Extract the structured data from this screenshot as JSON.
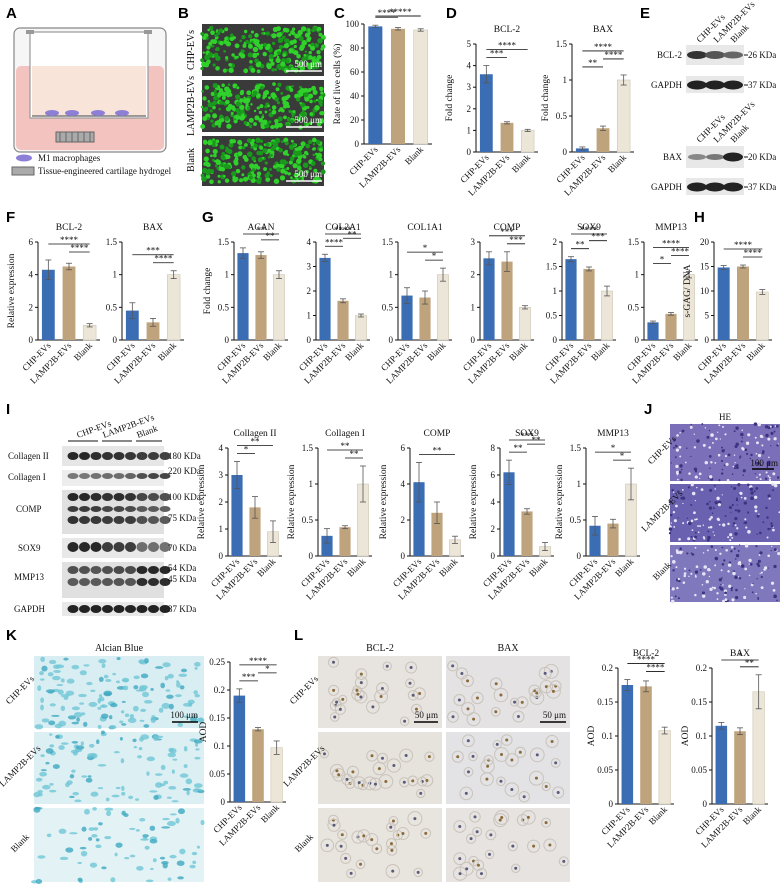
{
  "panels": {
    "A": {
      "label": "A",
      "legend": [
        "M1 macrophages",
        "Tissue-engineered cartilage hydrogel"
      ]
    },
    "B": {
      "label": "B",
      "rows": [
        "CHP-EVs",
        "LAMP2B-EVs",
        "Blank"
      ],
      "scale": "500 μm"
    },
    "C": {
      "label": "C"
    },
    "D": {
      "label": "D"
    },
    "E": {
      "label": "E",
      "blot1": {
        "cols": [
          "CHP-EVs",
          "LAMP2B-EVs",
          "Blank"
        ],
        "rows": [
          "BCL-2",
          "GAPDH"
        ],
        "kda": [
          "26 KDa",
          "37 KDa"
        ]
      },
      "blot2": {
        "cols": [
          "CHP-EVs",
          "LAMP2B-EVs",
          "Blank"
        ],
        "rows": [
          "BAX",
          "GAPDH"
        ],
        "kda": [
          "20 KDa",
          "37 KDa"
        ]
      }
    },
    "F": {
      "label": "F"
    },
    "G": {
      "label": "G"
    },
    "H": {
      "label": "H"
    },
    "I": {
      "label": "I",
      "groups": [
        "CHP-EVs",
        "LAMP2B-EVs",
        "Blank"
      ],
      "rows": [
        "Collagen II",
        "Collagen I",
        "COMP",
        "SOX9",
        "MMP13",
        "GAPDH"
      ],
      "kda": [
        "180 KDa",
        "220 KDa",
        "100 KDa",
        "75 KDa",
        "70 KDa",
        "54 KDa",
        "45 KDa",
        "37 KDa"
      ]
    },
    "J": {
      "label": "J",
      "title": "HE",
      "rows": [
        "CHP-EVs",
        "LAMP2B-EVs",
        "Blank"
      ],
      "scale": "100 μm"
    },
    "K": {
      "label": "K",
      "title": "Alcian Blue",
      "rows": [
        "CHP-EVs",
        "LAMP2B-EVs",
        "Blank"
      ],
      "scale": "100 μm"
    },
    "L": {
      "label": "L",
      "cols": [
        "BCL-2",
        "BAX"
      ],
      "rows": [
        "CHP-EVs",
        "LAMP2B-EVs",
        "Blank"
      ],
      "scale": "50 μm"
    }
  },
  "colors": {
    "chp": "#3b6db4",
    "lamp": "#bfa37c",
    "blank": "#ece6d8"
  },
  "chart_data": [
    {
      "id": "C",
      "type": "bar",
      "title": "",
      "ylabel": "Rate of live cells (%)",
      "categories": [
        "CHP-EVs",
        "LAMP2B-EVs",
        "Blank"
      ],
      "values": [
        98,
        96,
        95
      ],
      "errors": [
        1,
        1,
        1
      ],
      "ylim": [
        0,
        100
      ],
      "yticks": [
        "0",
        "20",
        "40",
        "60",
        "80",
        "100"
      ],
      "sig": [
        {
          "a": 0,
          "b": 1,
          "text": "****"
        },
        {
          "a": 0,
          "b": 2,
          "text": "****"
        },
        {
          "a": 1,
          "b": 2,
          "text": "*"
        }
      ]
    },
    {
      "id": "D1",
      "type": "bar",
      "title": "BCL-2",
      "ylabel": "Fold change",
      "categories": [
        "CHP-EVs",
        "LAMP2B-EVs",
        "Blank"
      ],
      "values": [
        3.6,
        1.35,
        1.0
      ],
      "errors": [
        0.4,
        0.05,
        0.05
      ],
      "ylim": [
        0,
        5
      ],
      "yticks": [
        "0",
        "1",
        "2",
        "3",
        "4",
        "5"
      ],
      "sig": [
        {
          "a": 0,
          "b": 1,
          "text": "***"
        },
        {
          "a": 0,
          "b": 2,
          "text": "****"
        }
      ]
    },
    {
      "id": "D2",
      "type": "bar",
      "title": "BAX",
      "ylabel": "Fold change",
      "categories": [
        "CHP-EVs",
        "LAMP2B-EVs",
        "Blank"
      ],
      "values": [
        0.05,
        0.33,
        1.0
      ],
      "errors": [
        0.02,
        0.03,
        0.07
      ],
      "ylim": [
        0,
        1.5
      ],
      "yticks": [
        "0",
        "0.5",
        "1",
        "1.5"
      ],
      "sig": [
        {
          "a": 0,
          "b": 1,
          "text": "**"
        },
        {
          "a": 0,
          "b": 2,
          "text": "****"
        },
        {
          "a": 1,
          "b": 2,
          "text": "****"
        }
      ]
    },
    {
      "id": "F1",
      "type": "bar",
      "title": "BCL-2",
      "ylabel": "Relative expression",
      "categories": [
        "CHP-EVs",
        "LAMP2B-EVs",
        "Blank"
      ],
      "values": [
        4.3,
        4.5,
        0.9
      ],
      "errors": [
        0.6,
        0.2,
        0.1
      ],
      "ylim": [
        0,
        6
      ],
      "yticks": [
        "0",
        "2",
        "4",
        "6"
      ],
      "sig": [
        {
          "a": 0,
          "b": 2,
          "text": "****"
        },
        {
          "a": 1,
          "b": 2,
          "text": "****"
        }
      ]
    },
    {
      "id": "F2",
      "type": "bar",
      "title": "BAX",
      "ylabel": "",
      "categories": [
        "CHP-EVs",
        "LAMP2B-EVs",
        "Blank"
      ],
      "values": [
        0.45,
        0.27,
        1.0
      ],
      "errors": [
        0.12,
        0.06,
        0.06
      ],
      "ylim": [
        0,
        1.5
      ],
      "yticks": [
        "0",
        "0.5",
        "1",
        "1.5"
      ],
      "sig": [
        {
          "a": 0,
          "b": 2,
          "text": "***"
        },
        {
          "a": 1,
          "b": 2,
          "text": "****"
        }
      ]
    },
    {
      "id": "G1",
      "type": "bar",
      "title": "ACAN",
      "ylabel": "Fold change",
      "categories": [
        "CHP-EVs",
        "LAMP2B-EVs",
        "Blank"
      ],
      "values": [
        1.33,
        1.3,
        1.0
      ],
      "errors": [
        0.08,
        0.05,
        0.06
      ],
      "ylim": [
        0,
        1.5
      ],
      "yticks": [
        "0",
        "0.5",
        "1",
        "1.5"
      ],
      "sig": [
        {
          "a": 0,
          "b": 2,
          "text": "**"
        },
        {
          "a": 1,
          "b": 2,
          "text": "**"
        }
      ]
    },
    {
      "id": "G2",
      "type": "bar",
      "title": "COL2A1",
      "ylabel": "",
      "categories": [
        "CHP-EVs",
        "LAMP2B-EVs",
        "Blank"
      ],
      "values": [
        3.35,
        1.6,
        1.0
      ],
      "errors": [
        0.15,
        0.08,
        0.06
      ],
      "ylim": [
        0,
        4
      ],
      "yticks": [
        "0",
        "1",
        "2",
        "3",
        "4"
      ],
      "sig": [
        {
          "a": 0,
          "b": 1,
          "text": "****"
        },
        {
          "a": 0,
          "b": 2,
          "text": "****"
        },
        {
          "a": 1,
          "b": 2,
          "text": "**"
        }
      ]
    },
    {
      "id": "G3",
      "type": "bar",
      "title": "COL1A1",
      "ylabel": "",
      "categories": [
        "CHP-EVs",
        "LAMP2B-EVs",
        "Blank"
      ],
      "values": [
        0.68,
        0.65,
        1.0
      ],
      "errors": [
        0.12,
        0.1,
        0.1
      ],
      "ylim": [
        0,
        1.5
      ],
      "yticks": [
        "0",
        "0.5",
        "1",
        "1.5"
      ],
      "sig": [
        {
          "a": 0,
          "b": 2,
          "text": "*"
        },
        {
          "a": 1,
          "b": 2,
          "text": "*"
        }
      ]
    },
    {
      "id": "G4",
      "type": "bar",
      "title": "COMP",
      "ylabel": "",
      "categories": [
        "CHP-EVs",
        "LAMP2B-EVs",
        "Blank"
      ],
      "values": [
        2.5,
        2.4,
        1.0
      ],
      "errors": [
        0.2,
        0.3,
        0.05
      ],
      "ylim": [
        0,
        3
      ],
      "yticks": [
        "0",
        "1",
        "2",
        "3"
      ],
      "sig": [
        {
          "a": 0,
          "b": 2,
          "text": "***"
        },
        {
          "a": 1,
          "b": 2,
          "text": "***"
        }
      ]
    },
    {
      "id": "G5",
      "type": "bar",
      "title": "SOX9",
      "ylabel": "",
      "categories": [
        "CHP-EVs",
        "LAMP2B-EVs",
        "Blank"
      ],
      "values": [
        1.65,
        1.45,
        1.0
      ],
      "errors": [
        0.05,
        0.04,
        0.1
      ],
      "ylim": [
        0,
        2
      ],
      "yticks": [
        "0",
        "0.5",
        "1",
        "1.5",
        "2"
      ],
      "sig": [
        {
          "a": 0,
          "b": 1,
          "text": "**"
        },
        {
          "a": 0,
          "b": 2,
          "text": "****"
        },
        {
          "a": 1,
          "b": 2,
          "text": "***"
        }
      ]
    },
    {
      "id": "G6",
      "type": "bar",
      "title": "MMP13",
      "ylabel": "",
      "categories": [
        "CHP-EVs",
        "LAMP2B-EVs",
        "Blank"
      ],
      "values": [
        0.27,
        0.4,
        1.0
      ],
      "errors": [
        0.02,
        0.02,
        0.05
      ],
      "ylim": [
        0,
        1.5
      ],
      "yticks": [
        "0",
        "0.5",
        "1",
        "1.5"
      ],
      "sig": [
        {
          "a": 0,
          "b": 1,
          "text": "*"
        },
        {
          "a": 0,
          "b": 2,
          "text": "****"
        },
        {
          "a": 1,
          "b": 2,
          "text": "****"
        }
      ]
    },
    {
      "id": "H",
      "type": "bar",
      "title": "",
      "ylabel": "s-GAG/ DNA",
      "categories": [
        "CHP-EVs",
        "LAMP2B-EVs",
        "Blank"
      ],
      "values": [
        14.8,
        15.0,
        9.8
      ],
      "errors": [
        0.4,
        0.3,
        0.5
      ],
      "ylim": [
        0,
        20
      ],
      "yticks": [
        "0",
        "5",
        "10",
        "15",
        "20"
      ],
      "sig": [
        {
          "a": 0,
          "b": 2,
          "text": "****"
        },
        {
          "a": 1,
          "b": 2,
          "text": "****"
        }
      ]
    },
    {
      "id": "I1",
      "type": "bar",
      "title": "Collagen II",
      "ylabel": "Relative expression",
      "categories": [
        "CHP-EVs",
        "LAMP2B-EVs",
        "Blank"
      ],
      "values": [
        3.0,
        1.8,
        0.9
      ],
      "errors": [
        0.5,
        0.4,
        0.4
      ],
      "ylim": [
        0,
        4
      ],
      "yticks": [
        "0",
        "1",
        "2",
        "3",
        "4"
      ],
      "sig": [
        {
          "a": 0,
          "b": 1,
          "text": "*"
        },
        {
          "a": 0,
          "b": 2,
          "text": "**"
        }
      ]
    },
    {
      "id": "I2",
      "type": "bar",
      "title": "Collagen I",
      "ylabel": "Relative expression",
      "categories": [
        "CHP-EVs",
        "LAMP2B-EVs",
        "Blank"
      ],
      "values": [
        0.28,
        0.4,
        1.0
      ],
      "errors": [
        0.1,
        0.02,
        0.25
      ],
      "ylim": [
        0,
        1.5
      ],
      "yticks": [
        "0",
        "0.5",
        "1",
        "1.5"
      ],
      "sig": [
        {
          "a": 0,
          "b": 2,
          "text": "**"
        },
        {
          "a": 1,
          "b": 2,
          "text": "**"
        }
      ]
    },
    {
      "id": "I3",
      "type": "bar",
      "title": "COMP",
      "ylabel": "Relative expression",
      "categories": [
        "CHP-EVs",
        "LAMP2B-EVs",
        "Blank"
      ],
      "values": [
        4.1,
        2.4,
        0.9
      ],
      "errors": [
        1.1,
        0.6,
        0.2
      ],
      "ylim": [
        0,
        6
      ],
      "yticks": [
        "0",
        "2",
        "4",
        "6"
      ],
      "sig": [
        {
          "a": 0,
          "b": 2,
          "text": "**"
        }
      ]
    },
    {
      "id": "I4",
      "type": "bar",
      "title": "SOX9",
      "ylabel": "Relative expression",
      "categories": [
        "CHP-EVs",
        "LAMP2B-EVs",
        "Blank"
      ],
      "values": [
        6.2,
        3.3,
        0.7
      ],
      "errors": [
        0.9,
        0.2,
        0.3
      ],
      "ylim": [
        0,
        8
      ],
      "yticks": [
        "0",
        "2",
        "4",
        "6",
        "8"
      ],
      "sig": [
        {
          "a": 0,
          "b": 1,
          "text": "**"
        },
        {
          "a": 0,
          "b": 2,
          "text": "***"
        },
        {
          "a": 1,
          "b": 2,
          "text": "**"
        }
      ]
    },
    {
      "id": "I5",
      "type": "bar",
      "title": "MMP13",
      "ylabel": "Relative expression",
      "categories": [
        "CHP-EVs",
        "LAMP2B-EVs",
        "Blank"
      ],
      "values": [
        0.42,
        0.45,
        1.0
      ],
      "errors": [
        0.13,
        0.06,
        0.22
      ],
      "ylim": [
        0,
        1.5
      ],
      "yticks": [
        "0",
        "0.5",
        "1",
        "1.5"
      ],
      "sig": [
        {
          "a": 0,
          "b": 2,
          "text": "*"
        },
        {
          "a": 1,
          "b": 2,
          "text": "*"
        }
      ]
    },
    {
      "id": "K",
      "type": "bar",
      "title": "",
      "ylabel": "AOD",
      "categories": [
        "CHP-EVs",
        "LAMP2B-EVs",
        "Blank"
      ],
      "values": [
        0.19,
        0.13,
        0.097
      ],
      "errors": [
        0.012,
        0.003,
        0.012
      ],
      "ylim": [
        0,
        0.25
      ],
      "yticks": [
        "0",
        "0.05",
        "0.1",
        "0.15",
        "0.2",
        "0.25"
      ],
      "sig": [
        {
          "a": 0,
          "b": 1,
          "text": "***"
        },
        {
          "a": 0,
          "b": 2,
          "text": "****"
        },
        {
          "a": 1,
          "b": 2,
          "text": "*"
        }
      ]
    },
    {
      "id": "L1",
      "type": "bar",
      "title": "BCL-2",
      "ylabel": "AOD",
      "categories": [
        "CHP-EVs",
        "LAMP2B-EVs",
        "Blank"
      ],
      "values": [
        0.175,
        0.173,
        0.108
      ],
      "errors": [
        0.008,
        0.008,
        0.005
      ],
      "ylim": [
        0,
        0.2
      ],
      "yticks": [
        "0",
        "0.05",
        "0.1",
        "0.15",
        "0.2"
      ],
      "sig": [
        {
          "a": 0,
          "b": 2,
          "text": "****"
        },
        {
          "a": 1,
          "b": 2,
          "text": "****"
        }
      ]
    },
    {
      "id": "L2",
      "type": "bar",
      "title": "BAX",
      "ylabel": "AOD",
      "categories": [
        "CHP-EVs",
        "LAMP2B-EVs",
        "Blank"
      ],
      "values": [
        0.115,
        0.107,
        0.165
      ],
      "errors": [
        0.005,
        0.005,
        0.025
      ],
      "ylim": [
        0,
        0.2
      ],
      "yticks": [
        "0",
        "0.05",
        "0.1",
        "0.15",
        "0.2"
      ],
      "sig": [
        {
          "a": 0,
          "b": 2,
          "text": "*"
        },
        {
          "a": 1,
          "b": 2,
          "text": "**"
        }
      ]
    }
  ]
}
